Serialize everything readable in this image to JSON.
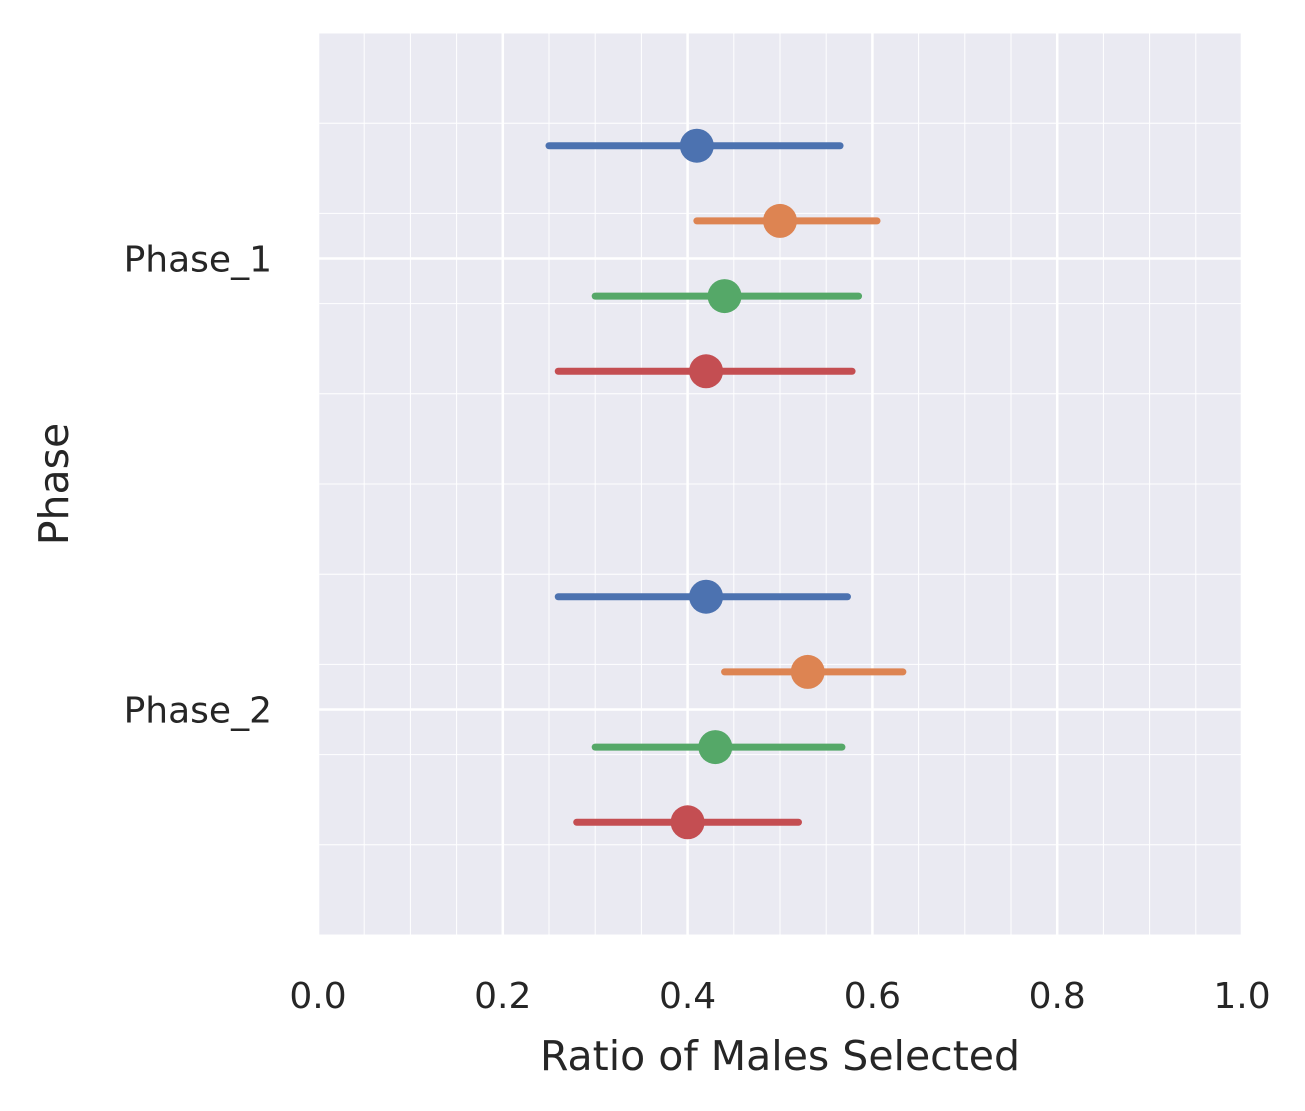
{
  "chart_data": {
    "type": "pointrange",
    "orientation": "horizontal",
    "xlabel": "Ratio of Males Selected",
    "ylabel": "Phase",
    "xlim": [
      0.0,
      1.0
    ],
    "x_ticks": [
      "0.0",
      "0.2",
      "0.4",
      "0.6",
      "0.8",
      "1.0"
    ],
    "x_tick_values": [
      0.0,
      0.2,
      0.4,
      0.6,
      0.8,
      1.0
    ],
    "categories": [
      "Phase_1",
      "Phase_2"
    ],
    "grid": true,
    "minor_grid": true,
    "background": "#EAEAF2",
    "series": [
      {
        "color": "#4C72B0",
        "points": [
          {
            "category": "Phase_1",
            "estimate": 0.41,
            "low": 0.25,
            "high": 0.565
          },
          {
            "category": "Phase_2",
            "estimate": 0.42,
            "low": 0.26,
            "high": 0.573
          }
        ]
      },
      {
        "color": "#DD8452",
        "points": [
          {
            "category": "Phase_1",
            "estimate": 0.5,
            "low": 0.41,
            "high": 0.605
          },
          {
            "category": "Phase_2",
            "estimate": 0.53,
            "low": 0.44,
            "high": 0.633
          }
        ]
      },
      {
        "color": "#55A868",
        "points": [
          {
            "category": "Phase_1",
            "estimate": 0.44,
            "low": 0.3,
            "high": 0.585
          },
          {
            "category": "Phase_2",
            "estimate": 0.43,
            "low": 0.3,
            "high": 0.567
          }
        ]
      },
      {
        "color": "#C44E52",
        "points": [
          {
            "category": "Phase_1",
            "estimate": 0.42,
            "low": 0.26,
            "high": 0.578
          },
          {
            "category": "Phase_2",
            "estimate": 0.4,
            "low": 0.28,
            "high": 0.52
          }
        ]
      }
    ]
  }
}
